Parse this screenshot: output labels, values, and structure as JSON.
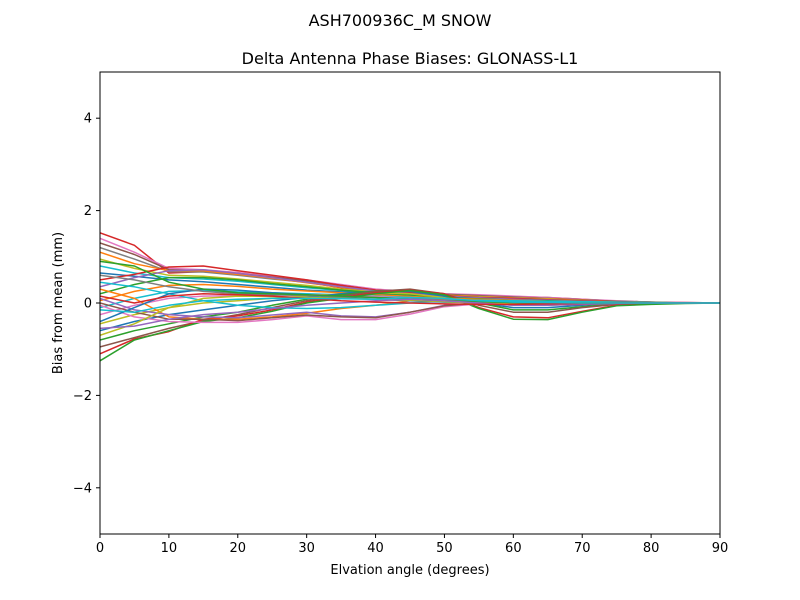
{
  "figure": {
    "suptitle": "ASH700936C_M    SNOW"
  },
  "chart_data": {
    "type": "line",
    "title": "Delta Antenna Phase Biases: GLONASS-L1",
    "xlabel": "Elvation angle (degrees)",
    "ylabel": "Bias from mean (mm)",
    "xlim": [
      0,
      90
    ],
    "ylim": [
      -5,
      5
    ],
    "xticks": [
      0,
      10,
      20,
      30,
      40,
      50,
      60,
      70,
      80,
      90
    ],
    "yticks": [
      -4,
      -2,
      0,
      2,
      4
    ],
    "xtick_labels": [
      "0",
      "10",
      "20",
      "30",
      "40",
      "50",
      "60",
      "70",
      "80",
      "90"
    ],
    "ytick_labels": [
      "−4",
      "−2",
      "0",
      "2",
      "4"
    ],
    "grid": false,
    "legend": "none",
    "x": [
      0,
      5,
      10,
      15,
      20,
      25,
      30,
      35,
      40,
      45,
      50,
      55,
      60,
      65,
      70,
      75,
      80,
      85,
      90
    ],
    "series": [
      {
        "values": [
          1.52,
          1.25,
          0.65,
          0.68,
          0.62,
          0.55,
          0.45,
          0.33,
          0.25,
          0.22,
          0.18,
          0.16,
          0.14,
          0.12,
          0.08,
          0.04,
          0.02,
          0.01,
          0.0
        ],
        "color": "#d62728"
      },
      {
        "values": [
          1.4,
          1.1,
          0.75,
          0.72,
          0.66,
          0.58,
          0.5,
          0.4,
          0.3,
          0.25,
          0.2,
          0.18,
          0.15,
          0.12,
          0.08,
          0.05,
          0.02,
          0.01,
          0.0
        ],
        "color": "#e377c2"
      },
      {
        "values": [
          1.3,
          1.05,
          0.72,
          0.7,
          0.64,
          0.56,
          0.48,
          0.38,
          0.28,
          0.24,
          0.19,
          0.16,
          0.13,
          0.1,
          0.07,
          0.04,
          0.02,
          0.0,
          0.0
        ],
        "color": "#8c564b"
      },
      {
        "values": [
          1.2,
          0.95,
          0.68,
          0.67,
          0.6,
          0.52,
          0.45,
          0.36,
          0.27,
          0.22,
          0.18,
          0.15,
          0.12,
          0.1,
          0.06,
          0.04,
          0.02,
          0.0,
          0.0
        ],
        "color": "#7f7f7f"
      },
      {
        "values": [
          1.1,
          0.85,
          0.7,
          0.7,
          0.62,
          0.54,
          0.44,
          0.34,
          0.26,
          0.21,
          0.17,
          0.14,
          0.11,
          0.09,
          0.06,
          0.03,
          0.01,
          0.0,
          0.0
        ],
        "color": "#ff7f0e"
      },
      {
        "values": [
          0.95,
          0.75,
          0.6,
          0.58,
          0.52,
          0.45,
          0.38,
          0.3,
          0.24,
          0.2,
          0.16,
          0.13,
          0.1,
          0.08,
          0.05,
          0.03,
          0.01,
          0.0,
          0.0
        ],
        "color": "#bcbd22"
      },
      {
        "values": [
          0.8,
          0.65,
          0.55,
          0.52,
          0.47,
          0.4,
          0.33,
          0.27,
          0.22,
          0.19,
          0.15,
          0.12,
          0.1,
          0.07,
          0.05,
          0.03,
          0.01,
          0.0,
          0.0
        ],
        "color": "#17becf"
      },
      {
        "values": [
          0.65,
          0.58,
          0.5,
          0.46,
          0.4,
          0.34,
          0.28,
          0.24,
          0.2,
          0.17,
          0.14,
          0.11,
          0.08,
          0.06,
          0.04,
          0.02,
          0.01,
          0.0,
          0.0
        ],
        "color": "#1f77b4"
      },
      {
        "values": [
          0.5,
          0.62,
          0.78,
          0.8,
          0.7,
          0.6,
          0.5,
          0.38,
          0.28,
          0.22,
          0.16,
          0.12,
          0.1,
          0.07,
          0.05,
          0.03,
          0.01,
          0.0,
          0.0
        ],
        "color": "#d62728"
      },
      {
        "values": [
          0.35,
          0.55,
          0.7,
          0.72,
          0.64,
          0.55,
          0.45,
          0.35,
          0.26,
          0.2,
          0.15,
          0.11,
          0.08,
          0.06,
          0.04,
          0.02,
          0.01,
          0.0,
          0.0
        ],
        "color": "#9467bd"
      },
      {
        "values": [
          0.2,
          0.4,
          0.55,
          0.55,
          0.5,
          0.42,
          0.35,
          0.28,
          0.22,
          0.17,
          0.12,
          0.09,
          0.06,
          0.05,
          0.03,
          0.02,
          0.01,
          0.0,
          0.0
        ],
        "color": "#2ca02c"
      },
      {
        "values": [
          0.05,
          0.25,
          0.38,
          0.4,
          0.36,
          0.3,
          0.26,
          0.22,
          0.18,
          0.14,
          0.1,
          0.07,
          0.05,
          0.04,
          0.02,
          0.01,
          0.0,
          0.0,
          0.0
        ],
        "color": "#ff7f0e"
      },
      {
        "values": [
          -0.1,
          0.1,
          0.25,
          0.27,
          0.24,
          0.22,
          0.2,
          0.18,
          0.15,
          0.12,
          0.08,
          0.05,
          0.03,
          0.02,
          0.01,
          0.01,
          0.0,
          0.0,
          0.0
        ],
        "color": "#17becf"
      },
      {
        "values": [
          -0.25,
          -0.05,
          0.1,
          0.15,
          0.16,
          0.17,
          0.18,
          0.17,
          0.14,
          0.1,
          0.06,
          0.02,
          0.0,
          0.0,
          0.0,
          0.0,
          0.0,
          0.0,
          0.0
        ],
        "color": "#e377c2"
      },
      {
        "values": [
          -0.45,
          -0.25,
          -0.1,
          0.0,
          0.05,
          0.1,
          0.15,
          0.2,
          0.22,
          0.2,
          0.12,
          0.02,
          -0.05,
          -0.05,
          -0.02,
          0.0,
          0.0,
          0.0,
          0.0
        ],
        "color": "#bcbd22"
      },
      {
        "values": [
          -0.6,
          -0.4,
          -0.25,
          -0.15,
          -0.05,
          0.05,
          0.12,
          0.2,
          0.25,
          0.25,
          0.15,
          0.0,
          -0.1,
          -0.1,
          -0.05,
          0.0,
          0.0,
          0.0,
          0.0
        ],
        "color": "#1f77b4"
      },
      {
        "values": [
          -0.8,
          -0.6,
          -0.45,
          -0.3,
          -0.2,
          -0.05,
          0.08,
          0.18,
          0.26,
          0.28,
          0.18,
          0.0,
          -0.15,
          -0.15,
          -0.08,
          -0.02,
          0.0,
          0.0,
          0.0
        ],
        "color": "#2ca02c"
      },
      {
        "values": [
          -0.95,
          -0.75,
          -0.55,
          -0.38,
          -0.25,
          -0.1,
          0.05,
          0.15,
          0.25,
          0.3,
          0.2,
          -0.05,
          -0.2,
          -0.2,
          -0.1,
          -0.03,
          0.0,
          0.0,
          0.0
        ],
        "color": "#8c564b"
      },
      {
        "values": [
          -1.1,
          -0.78,
          -0.62,
          -0.35,
          -0.28,
          -0.15,
          0.02,
          0.12,
          0.22,
          0.28,
          0.2,
          -0.1,
          -0.3,
          -0.32,
          -0.18,
          -0.05,
          -0.02,
          0.0,
          0.0
        ],
        "color": "#d62728"
      },
      {
        "values": [
          -1.25,
          -0.8,
          -0.6,
          -0.4,
          -0.32,
          -0.18,
          0.0,
          0.1,
          0.2,
          0.27,
          0.18,
          -0.12,
          -0.35,
          -0.36,
          -0.2,
          -0.06,
          -0.03,
          -0.01,
          0.0
        ],
        "color": "#2ca02c"
      },
      {
        "values": [
          0.3,
          0.1,
          -0.3,
          -0.35,
          -0.35,
          -0.3,
          -0.22,
          -0.12,
          -0.05,
          0.05,
          0.1,
          0.08,
          0.06,
          0.04,
          0.03,
          0.02,
          0.01,
          0.0,
          0.0
        ],
        "color": "#ff7f0e"
      },
      {
        "values": [
          0.1,
          -0.15,
          -0.25,
          -0.3,
          -0.32,
          -0.26,
          -0.2,
          -0.28,
          -0.3,
          -0.2,
          -0.05,
          0.0,
          0.0,
          0.0,
          0.0,
          0.0,
          0.0,
          0.0,
          0.0
        ],
        "color": "#9467bd"
      },
      {
        "values": [
          -0.05,
          -0.3,
          -0.4,
          -0.42,
          -0.42,
          -0.36,
          -0.28,
          -0.36,
          -0.36,
          -0.24,
          -0.08,
          -0.02,
          0.0,
          0.0,
          0.0,
          0.0,
          0.0,
          0.0,
          0.0
        ],
        "color": "#e377c2"
      },
      {
        "values": [
          0.0,
          -0.2,
          -0.35,
          -0.35,
          -0.38,
          -0.32,
          -0.26,
          -0.3,
          -0.32,
          -0.2,
          -0.06,
          0.0,
          0.0,
          0.0,
          0.0,
          0.0,
          0.0,
          0.0,
          0.0
        ],
        "color": "#8c564b"
      },
      {
        "values": [
          0.45,
          0.35,
          0.2,
          0.05,
          -0.05,
          -0.1,
          -0.12,
          -0.1,
          -0.05,
          0.0,
          0.05,
          0.06,
          0.05,
          0.04,
          0.03,
          0.02,
          0.01,
          0.0,
          0.0
        ],
        "color": "#17becf"
      },
      {
        "values": [
          -0.4,
          -0.1,
          0.2,
          0.3,
          0.28,
          0.22,
          0.18,
          0.12,
          0.08,
          0.05,
          0.02,
          0.01,
          0.0,
          0.0,
          0.0,
          0.0,
          0.0,
          0.0,
          0.0
        ],
        "color": "#1f77b4"
      },
      {
        "values": [
          -0.7,
          -0.45,
          -0.1,
          0.1,
          0.15,
          0.14,
          0.12,
          0.1,
          0.08,
          0.06,
          0.03,
          0.0,
          -0.02,
          -0.02,
          0.0,
          0.0,
          0.0,
          0.0,
          0.0
        ],
        "color": "#bcbd22"
      },
      {
        "values": [
          0.6,
          0.5,
          0.35,
          0.25,
          0.2,
          0.18,
          0.16,
          0.14,
          0.12,
          0.1,
          0.06,
          0.03,
          0.01,
          0.0,
          0.0,
          0.0,
          0.0,
          0.0,
          0.0
        ],
        "color": "#7f7f7f"
      },
      {
        "values": [
          0.9,
          0.8,
          0.45,
          0.3,
          0.22,
          0.2,
          0.18,
          0.15,
          0.12,
          0.08,
          0.05,
          0.03,
          0.01,
          0.0,
          0.0,
          0.0,
          0.0,
          0.0,
          0.0
        ],
        "color": "#2ca02c"
      },
      {
        "values": [
          -0.55,
          -0.5,
          -0.35,
          -0.25,
          -0.2,
          -0.12,
          -0.05,
          0.0,
          0.05,
          0.08,
          0.05,
          0.0,
          -0.05,
          -0.05,
          -0.03,
          -0.01,
          0.0,
          0.0,
          0.0
        ],
        "color": "#9467bd"
      },
      {
        "values": [
          0.15,
          0.0,
          0.15,
          0.2,
          0.18,
          0.15,
          0.1,
          0.05,
          0.02,
          0.0,
          -0.02,
          -0.03,
          -0.03,
          -0.02,
          -0.01,
          0.0,
          0.0,
          0.0,
          0.0
        ],
        "color": "#d62728"
      },
      {
        "values": [
          -0.15,
          -0.2,
          -0.05,
          0.05,
          0.08,
          0.1,
          0.1,
          0.09,
          0.08,
          0.12,
          0.1,
          0.05,
          0.02,
          0.01,
          0.0,
          0.0,
          0.0,
          0.0,
          0.0
        ],
        "color": "#17becf"
      }
    ]
  }
}
